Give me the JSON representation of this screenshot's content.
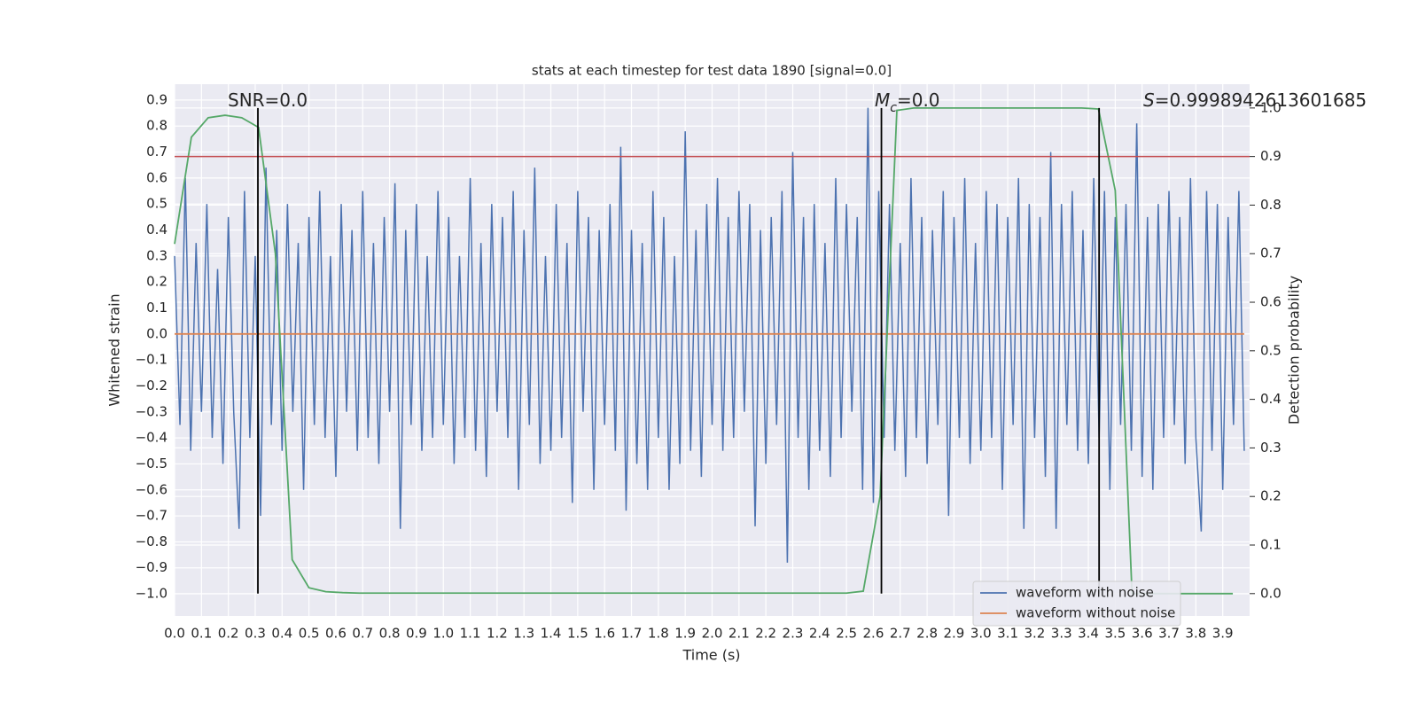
{
  "chart_data": {
    "type": "line",
    "title": "stats at each timestep for test data 1890 [signal=0.0]",
    "xlabel": "Time (s)",
    "ylabel": "Whitened strain",
    "y2label": "Detection probability",
    "xlim": [
      0,
      4.0
    ],
    "ylim": [
      -1.085,
      0.961
    ],
    "y2lim": [
      -0.046,
      1.049
    ],
    "grid": true,
    "legend": "lower right",
    "xticks": [
      {
        "value": 0,
        "label": "0.0"
      },
      {
        "value": 0.1,
        "label": "0.1"
      },
      {
        "value": 0.2,
        "label": "0.2"
      },
      {
        "value": 0.3,
        "label": "0.3"
      },
      {
        "value": 0.4,
        "label": "0.4"
      },
      {
        "value": 0.5,
        "label": "0.5"
      },
      {
        "value": 0.6,
        "label": "0.6"
      },
      {
        "value": 0.7,
        "label": "0.7"
      },
      {
        "value": 0.8,
        "label": "0.8"
      },
      {
        "value": 0.9,
        "label": "0.9"
      },
      {
        "value": 1,
        "label": "1.0"
      },
      {
        "value": 1.1,
        "label": "1.1"
      },
      {
        "value": 1.2,
        "label": "1.2"
      },
      {
        "value": 1.3,
        "label": "1.3"
      },
      {
        "value": 1.4,
        "label": "1.4"
      },
      {
        "value": 1.5,
        "label": "1.5"
      },
      {
        "value": 1.6,
        "label": "1.6"
      },
      {
        "value": 1.7,
        "label": "1.7"
      },
      {
        "value": 1.8,
        "label": "1.8"
      },
      {
        "value": 1.9,
        "label": "1.9"
      },
      {
        "value": 2,
        "label": "2.0"
      },
      {
        "value": 2.1,
        "label": "2.1"
      },
      {
        "value": 2.2,
        "label": "2.2"
      },
      {
        "value": 2.3,
        "label": "2.3"
      },
      {
        "value": 2.4,
        "label": "2.4"
      },
      {
        "value": 2.5,
        "label": "2.5"
      },
      {
        "value": 2.6,
        "label": "2.6"
      },
      {
        "value": 2.7,
        "label": "2.7"
      },
      {
        "value": 2.8,
        "label": "2.8"
      },
      {
        "value": 2.9,
        "label": "2.9"
      },
      {
        "value": 3,
        "label": "3.0"
      },
      {
        "value": 3.1,
        "label": "3.1"
      },
      {
        "value": 3.2,
        "label": "3.2"
      },
      {
        "value": 3.3,
        "label": "3.3"
      },
      {
        "value": 3.4,
        "label": "3.4"
      },
      {
        "value": 3.5,
        "label": "3.5"
      },
      {
        "value": 3.6,
        "label": "3.6"
      },
      {
        "value": 3.7,
        "label": "3.7"
      },
      {
        "value": 3.8,
        "label": "3.8"
      },
      {
        "value": 3.9,
        "label": "3.9"
      }
    ],
    "yticks": [
      {
        "value": -1,
        "label": "−1.0"
      },
      {
        "value": -0.9,
        "label": "−0.9"
      },
      {
        "value": -0.8,
        "label": "−0.8"
      },
      {
        "value": -0.7,
        "label": "−0.7"
      },
      {
        "value": -0.6,
        "label": "−0.6"
      },
      {
        "value": -0.5,
        "label": "−0.5"
      },
      {
        "value": -0.4,
        "label": "−0.4"
      },
      {
        "value": -0.3,
        "label": "−0.3"
      },
      {
        "value": -0.2,
        "label": "−0.2"
      },
      {
        "value": -0.1,
        "label": "−0.1"
      },
      {
        "value": 0,
        "label": "0.0"
      },
      {
        "value": 0.1,
        "label": "0.1"
      },
      {
        "value": 0.2,
        "label": "0.2"
      },
      {
        "value": 0.3,
        "label": "0.3"
      },
      {
        "value": 0.4,
        "label": "0.4"
      },
      {
        "value": 0.5,
        "label": "0.5"
      },
      {
        "value": 0.6,
        "label": "0.6"
      },
      {
        "value": 0.7,
        "label": "0.7"
      },
      {
        "value": 0.8,
        "label": "0.8"
      },
      {
        "value": 0.9,
        "label": "0.9"
      }
    ],
    "y2ticks": [
      {
        "value": 0,
        "label": "0.0"
      },
      {
        "value": 0.1,
        "label": "0.1"
      },
      {
        "value": 0.2,
        "label": "0.2"
      },
      {
        "value": 0.3,
        "label": "0.3"
      },
      {
        "value": 0.4,
        "label": "0.4"
      },
      {
        "value": 0.5,
        "label": "0.5"
      },
      {
        "value": 0.6,
        "label": "0.6"
      },
      {
        "value": 0.7,
        "label": "0.7"
      },
      {
        "value": 0.8,
        "label": "0.8"
      },
      {
        "value": 0.9,
        "label": "0.9"
      },
      {
        "value": 1,
        "label": "1.0"
      }
    ],
    "annotations": [
      [
        "SNR=0.0"
      ],
      [
        "M",
        "c",
        "=0.0"
      ],
      [
        "S",
        "=0.9998942613601685"
      ]
    ],
    "vlines": [
      0.31,
      2.63,
      3.44
    ],
    "vline_span": [
      0,
      1
    ],
    "vline_color": "#000000",
    "hline_y2": 0.9,
    "hline_color": "#c44e52",
    "series": [
      {
        "name": "waveform with noise",
        "color": "#4c72b0",
        "x": [
          0,
          0.02,
          0.04,
          0.06,
          0.08,
          0.1,
          0.12,
          0.14,
          0.16,
          0.18,
          0.2,
          0.22,
          0.24,
          0.26,
          0.28,
          0.3,
          0.32,
          0.34,
          0.36,
          0.38,
          0.4,
          0.42,
          0.44,
          0.46,
          0.48,
          0.5,
          0.52,
          0.54,
          0.56,
          0.58,
          0.6,
          0.62,
          0.64,
          0.66,
          0.68,
          0.7,
          0.72,
          0.74,
          0.76,
          0.78,
          0.8,
          0.82,
          0.84,
          0.86,
          0.88,
          0.9,
          0.92,
          0.94,
          0.96,
          0.98,
          1,
          1.02,
          1.04,
          1.06,
          1.08,
          1.1,
          1.12,
          1.14,
          1.16,
          1.18,
          1.2,
          1.22,
          1.24,
          1.26,
          1.28,
          1.3,
          1.32,
          1.34,
          1.36,
          1.38,
          1.4,
          1.42,
          1.44,
          1.46,
          1.48,
          1.5,
          1.52,
          1.54,
          1.56,
          1.58,
          1.6,
          1.62,
          1.64,
          1.66,
          1.68,
          1.7,
          1.72,
          1.74,
          1.76,
          1.78,
          1.8,
          1.82,
          1.84,
          1.86,
          1.88,
          1.9,
          1.92,
          1.94,
          1.96,
          1.98,
          2,
          2.02,
          2.04,
          2.06,
          2.08,
          2.1,
          2.12,
          2.14,
          2.16,
          2.18,
          2.2,
          2.22,
          2.24,
          2.26,
          2.28,
          2.3,
          2.32,
          2.34,
          2.36,
          2.38,
          2.4,
          2.42,
          2.44,
          2.46,
          2.48,
          2.5,
          2.52,
          2.54,
          2.56,
          2.58,
          2.6,
          2.62,
          2.64,
          2.66,
          2.68,
          2.7,
          2.72,
          2.74,
          2.76,
          2.78,
          2.8,
          2.82,
          2.84,
          2.86,
          2.88,
          2.9,
          2.92,
          2.94,
          2.96,
          2.98,
          3,
          3.02,
          3.04,
          3.06,
          3.08,
          3.1,
          3.12,
          3.14,
          3.16,
          3.18,
          3.2,
          3.22,
          3.24,
          3.26,
          3.28,
          3.3,
          3.32,
          3.34,
          3.36,
          3.38,
          3.4,
          3.42,
          3.44,
          3.46,
          3.48,
          3.5,
          3.52,
          3.54,
          3.56,
          3.58,
          3.6,
          3.62,
          3.64,
          3.66,
          3.68,
          3.7,
          3.72,
          3.74,
          3.76,
          3.78,
          3.8,
          3.82,
          3.84,
          3.86,
          3.88,
          3.9,
          3.92,
          3.94,
          3.96,
          3.98
        ],
        "values": [
          0.3,
          -0.35,
          0.6,
          -0.45,
          0.35,
          -0.3,
          0.5,
          -0.4,
          0.25,
          -0.5,
          0.45,
          -0.3,
          -0.75,
          0.55,
          -0.4,
          0.3,
          -0.7,
          0.64,
          -0.35,
          0.4,
          -0.45,
          0.5,
          -0.3,
          0.35,
          -0.6,
          0.45,
          -0.35,
          0.55,
          -0.4,
          0.3,
          -0.55,
          0.5,
          -0.3,
          0.4,
          -0.45,
          0.55,
          -0.4,
          0.35,
          -0.5,
          0.45,
          -0.3,
          0.58,
          -0.75,
          0.4,
          -0.35,
          0.5,
          -0.45,
          0.3,
          -0.4,
          0.55,
          -0.35,
          0.45,
          -0.5,
          0.3,
          -0.4,
          0.6,
          -0.45,
          0.35,
          -0.55,
          0.5,
          -0.3,
          0.45,
          -0.4,
          0.55,
          -0.6,
          0.4,
          -0.35,
          0.64,
          -0.5,
          0.3,
          -0.45,
          0.5,
          -0.4,
          0.35,
          -0.65,
          0.55,
          -0.3,
          0.45,
          -0.6,
          0.4,
          -0.35,
          0.5,
          -0.45,
          0.72,
          -0.68,
          0.4,
          -0.5,
          0.35,
          -0.6,
          0.55,
          -0.4,
          0.45,
          -0.6,
          0.3,
          -0.5,
          0.78,
          -0.45,
          0.4,
          -0.55,
          0.5,
          -0.35,
          0.6,
          -0.45,
          0.45,
          -0.4,
          0.55,
          -0.3,
          0.5,
          -0.74,
          0.4,
          -0.5,
          0.45,
          -0.35,
          0.55,
          -0.88,
          0.7,
          -0.4,
          0.45,
          -0.6,
          0.5,
          -0.45,
          0.35,
          -0.55,
          0.6,
          -0.4,
          0.5,
          -0.3,
          0.45,
          -0.6,
          0.87,
          -0.65,
          0.55,
          -0.4,
          0.5,
          -0.45,
          0.35,
          -0.55,
          0.6,
          -0.4,
          0.45,
          -0.5,
          0.4,
          -0.35,
          0.55,
          -0.7,
          0.45,
          -0.4,
          0.6,
          -0.5,
          0.35,
          -0.45,
          0.55,
          -0.4,
          0.5,
          -0.6,
          0.45,
          -0.35,
          0.6,
          -0.75,
          0.5,
          -0.4,
          0.45,
          -0.55,
          0.7,
          -0.75,
          0.5,
          -0.35,
          0.55,
          -0.45,
          0.4,
          -0.5,
          0.6,
          -0.4,
          0.55,
          -0.6,
          0.45,
          -0.35,
          0.5,
          -0.45,
          0.81,
          -0.55,
          0.45,
          -0.6,
          0.5,
          -0.4,
          0.55,
          -0.35,
          0.45,
          -0.5,
          0.6,
          -0.4,
          -0.76,
          0.55,
          -0.45,
          0.5,
          -0.6,
          0.45,
          -0.35,
          0.55,
          -0.45
        ]
      },
      {
        "name": "waveform without noise",
        "color": "#dd8452",
        "x": [
          0,
          3.98
        ],
        "values": [
          0,
          0
        ]
      },
      {
        "color": "#55a868",
        "axis": "y2",
        "x": [
          0,
          0.0625,
          0.125,
          0.1875,
          0.25,
          0.3125,
          0.375,
          0.4375,
          0.5,
          0.5625,
          0.625,
          0.6875,
          0.75,
          0.8125,
          0.875,
          0.9375,
          1,
          1.0625,
          1.125,
          1.1875,
          1.25,
          1.3125,
          1.375,
          1.4375,
          1.5,
          1.5625,
          1.625,
          1.6875,
          1.75,
          1.8125,
          1.875,
          1.9375,
          2,
          2.0625,
          2.125,
          2.1875,
          2.25,
          2.3125,
          2.375,
          2.4375,
          2.5,
          2.5625,
          2.625,
          2.6875,
          2.75,
          2.8125,
          2.875,
          2.9375,
          3,
          3.0625,
          3.125,
          3.1875,
          3.25,
          3.3125,
          3.375,
          3.4375,
          3.5,
          3.5625,
          3.625,
          3.6875,
          3.75,
          3.8125,
          3.875,
          3.9375
        ],
        "values": [
          0.72,
          0.94,
          0.98,
          0.985,
          0.98,
          0.96,
          0.7,
          0.07,
          0.012,
          0.004,
          0.002,
          0.001,
          0.001,
          0.001,
          0.001,
          0.001,
          0.001,
          0.001,
          0.001,
          0.001,
          0.001,
          0.001,
          0.001,
          0.001,
          0.001,
          0.001,
          0.001,
          0.001,
          0.001,
          0.001,
          0.001,
          0.001,
          0.001,
          0.001,
          0.001,
          0.001,
          0.001,
          0.001,
          0.001,
          0.001,
          0.001,
          0.005,
          0.2,
          0.995,
          1,
          1,
          1,
          1,
          1,
          1,
          1,
          1,
          1,
          1,
          1,
          0.998,
          0.83,
          0,
          0,
          0,
          0,
          0,
          0,
          0
        ]
      }
    ]
  }
}
